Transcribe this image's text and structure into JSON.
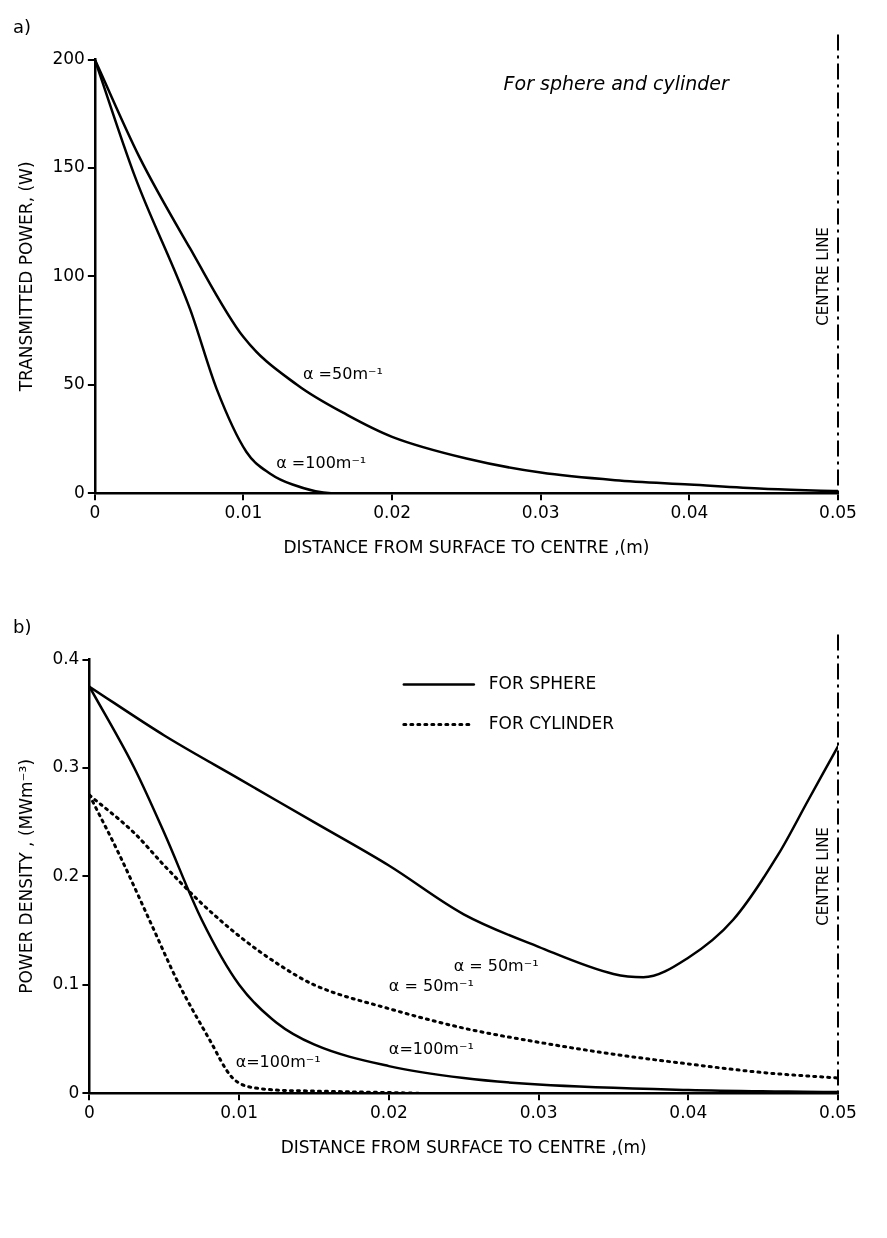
{
  "chart_data": [
    {
      "type": "line",
      "title": "a)",
      "xlabel": "DISTANCE FROM SURFACE TO CENTRE ,(m)",
      "ylabel": "TRANSMITTED POWER, (W)",
      "annotations": [
        "For sphere and cylinder"
      ],
      "xlim": [
        0,
        0.05
      ],
      "xticks": [
        0,
        0.01,
        0.02,
        0.03,
        0.04,
        0.05
      ],
      "ylim": [
        0,
        200
      ],
      "yticks": [
        0,
        50,
        100,
        150,
        200
      ],
      "grid": false,
      "legend": false,
      "marker": "none",
      "line_style": "solid",
      "ref_lines": [
        {
          "axis": "x",
          "value": 0.05,
          "label": "CENTRE LINE",
          "line_style": "dashed",
          "color": "#000000"
        }
      ],
      "series": [
        {
          "name": "α =50m⁻¹",
          "color": "#000000",
          "x": [
            0,
            0.003,
            0.0064,
            0.01,
            0.0136,
            0.017,
            0.02,
            0.025,
            0.03,
            0.035,
            0.04,
            0.045,
            0.05
          ],
          "values": [
            200,
            155,
            113,
            72,
            50,
            36,
            26,
            16,
            9.5,
            6,
            4,
            2,
            1
          ]
        },
        {
          "name": "α =100m⁻¹",
          "color": "#000000",
          "x": [
            0,
            0.0027,
            0.0064,
            0.0082,
            0.0102,
            0.0118,
            0.0133,
            0.0159,
            0.02,
            0.03,
            0.04,
            0.05
          ],
          "values": [
            200,
            146,
            85,
            48,
            19,
            9,
            4,
            0,
            0,
            0,
            0,
            0
          ]
        }
      ]
    },
    {
      "type": "line",
      "title": "b)",
      "xlabel": "DISTANCE FROM SURFACE TO CENTRE ,(m)",
      "ylabel": "POWER DENSITY , (MWm⁻³)",
      "annotations": [
        "FOR SPHERE",
        "FOR CYLINDER"
      ],
      "xlim": [
        0,
        0.05
      ],
      "xticks": [
        0,
        0.01,
        0.02,
        0.03,
        0.04,
        0.05
      ],
      "ylim": [
        0,
        0.4
      ],
      "yticks": [
        0,
        0.1,
        0.2,
        0.3,
        0.4
      ],
      "grid": false,
      "legend": false,
      "marker": "none",
      "ref_lines": [
        {
          "axis": "x",
          "value": 0.05,
          "label": "CENTRE LINE",
          "line_style": "dashed",
          "color": "#000000"
        }
      ],
      "series": [
        {
          "name": "α = 50m⁻¹",
          "color": "#000000",
          "line_style": "solid",
          "x": [
            0,
            0.005,
            0.01,
            0.015,
            0.02,
            0.025,
            0.03,
            0.035,
            0.037,
            0.04,
            0.043,
            0.046,
            0.048,
            0.05
          ],
          "values": [
            0.375,
            0.33,
            0.29,
            0.25,
            0.21,
            0.165,
            0.135,
            0.11,
            0.107,
            0.125,
            0.16,
            0.22,
            0.27,
            0.32
          ]
        },
        {
          "name": "α=100m⁻¹",
          "color": "#000000",
          "line_style": "solid",
          "x": [
            0,
            0.003,
            0.005,
            0.0075,
            0.01,
            0.0125,
            0.015,
            0.02,
            0.025,
            0.03,
            0.04,
            0.05
          ],
          "values": [
            0.375,
            0.3,
            0.24,
            0.16,
            0.1,
            0.065,
            0.045,
            0.025,
            0.014,
            0.008,
            0.003,
            0.001
          ]
        },
        {
          "name": "α = 50m⁻¹",
          "color": "#000000",
          "line_style": "dotted",
          "x": [
            0,
            0.003,
            0.005,
            0.0075,
            0.01,
            0.0125,
            0.015,
            0.02,
            0.025,
            0.03,
            0.035,
            0.04,
            0.045,
            0.05
          ],
          "values": [
            0.275,
            0.24,
            0.21,
            0.175,
            0.145,
            0.12,
            0.1,
            0.078,
            0.06,
            0.047,
            0.036,
            0.027,
            0.019,
            0.014
          ]
        },
        {
          "name": "α=100m⁻¹",
          "color": "#000000",
          "line_style": "dotted",
          "x": [
            0,
            0.002,
            0.004,
            0.006,
            0.008,
            0.0095,
            0.011,
            0.015,
            0.022
          ],
          "values": [
            0.275,
            0.22,
            0.16,
            0.1,
            0.05,
            0.015,
            0.005,
            0.002,
            0
          ]
        }
      ]
    }
  ]
}
